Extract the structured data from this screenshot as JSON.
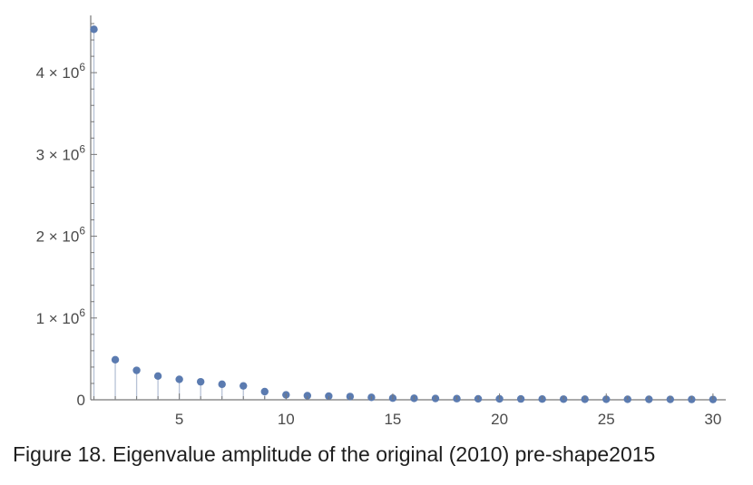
{
  "caption": "Figure 18. Eigenvalue amplitude of the original (2010) pre-shape2015",
  "colors": {
    "point": "#5b7bb0",
    "stem": "#b7c2d6",
    "axis": "#777777",
    "tick_text": "#4a4a4a"
  },
  "chart_data": {
    "type": "scatter",
    "style": "stem",
    "x": [
      1,
      2,
      3,
      4,
      5,
      6,
      7,
      8,
      9,
      10,
      11,
      12,
      13,
      14,
      15,
      16,
      17,
      18,
      19,
      20,
      21,
      22,
      23,
      24,
      25,
      26,
      27,
      28,
      29,
      30
    ],
    "values": [
      4530000,
      490000,
      360000,
      290000,
      250000,
      220000,
      190000,
      170000,
      100000,
      60000,
      50000,
      45000,
      40000,
      30000,
      20000,
      18000,
      16000,
      14000,
      12000,
      11000,
      10000,
      9000,
      8000,
      7000,
      6500,
      6000,
      5500,
      5000,
      4500,
      4000
    ],
    "xlim": [
      0.85,
      30.6
    ],
    "ylim": [
      0,
      4700000
    ],
    "xticks": [
      5,
      10,
      15,
      20,
      25,
      30
    ],
    "xtick_labels": [
      "5",
      "10",
      "15",
      "20",
      "25",
      "30"
    ],
    "yticks": [
      0,
      1000000,
      2000000,
      3000000,
      4000000
    ],
    "ytick_labels": [
      {
        "mantissa": "0",
        "exp": ""
      },
      {
        "mantissa": "1 × 10",
        "exp": "6"
      },
      {
        "mantissa": "2 × 10",
        "exp": "6"
      },
      {
        "mantissa": "3 × 10",
        "exp": "6"
      },
      {
        "mantissa": "4 × 10",
        "exp": "6"
      }
    ],
    "title": "",
    "xlabel": "",
    "ylabel": "",
    "grid": false
  }
}
